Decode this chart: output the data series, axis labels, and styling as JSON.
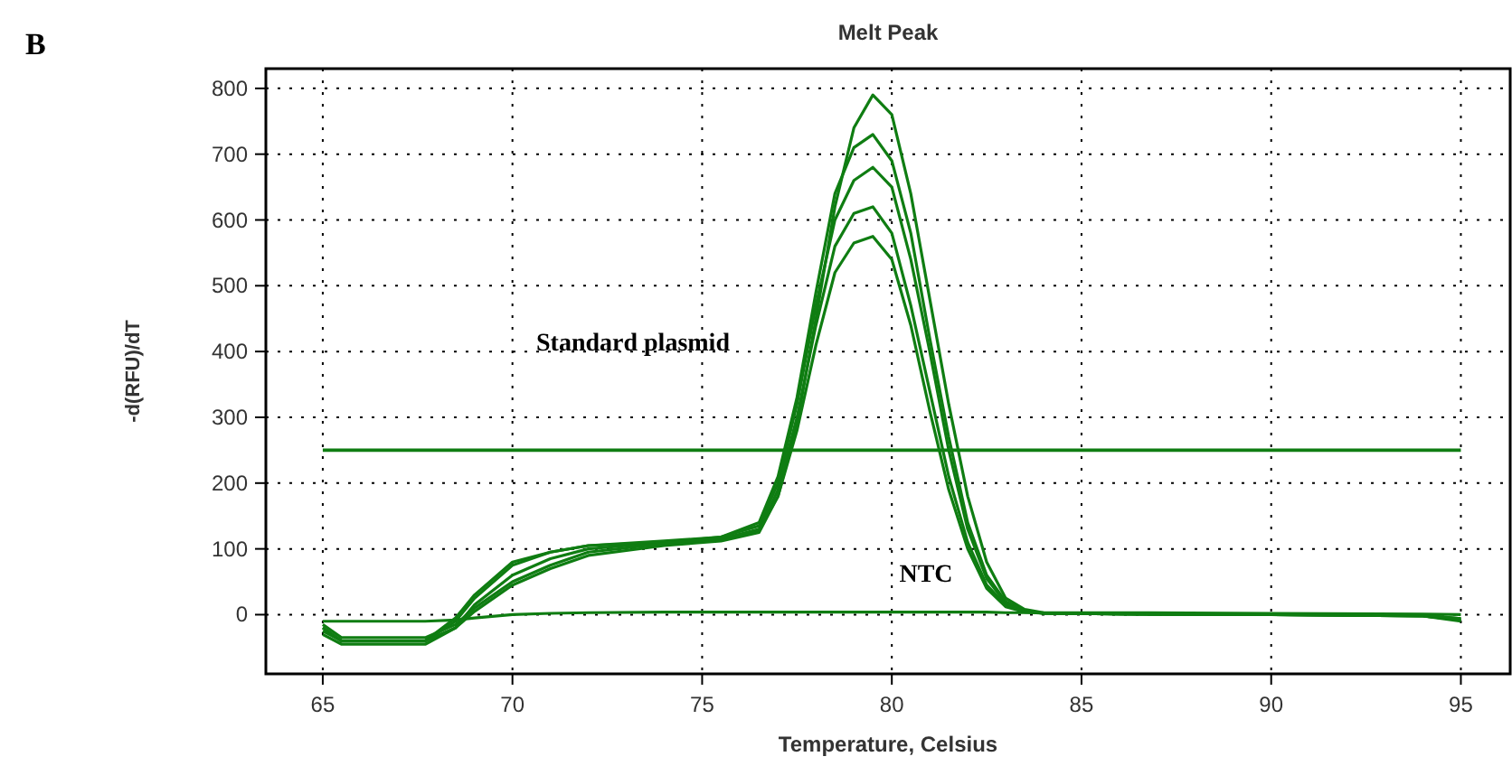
{
  "chart_data": {
    "type": "line",
    "title": "Melt Peak",
    "xlabel": "Temperature, Celsius",
    "ylabel": "-d(RFU)/dT",
    "x": [
      65,
      65.5,
      66,
      67,
      67.7,
      68.5,
      69,
      70,
      71,
      72,
      74,
      75.5,
      76.5,
      77,
      77.5,
      78,
      78.5,
      79,
      79.5,
      80,
      80.5,
      81,
      81.5,
      82,
      82.5,
      83,
      83.5,
      84,
      86,
      90,
      94,
      95
    ],
    "series": [
      {
        "color": "#0f7d12",
        "values": [
          -20,
          -40,
          -40,
          -40,
          -40,
          -5,
          30,
          80,
          95,
          105,
          110,
          115,
          130,
          180,
          290,
          450,
          620,
          740,
          790,
          760,
          640,
          480,
          320,
          180,
          80,
          25,
          8,
          3,
          1,
          0,
          -2,
          -10
        ]
      },
      {
        "color": "#0f7d12",
        "values": [
          -30,
          -45,
          -45,
          -45,
          -45,
          -20,
          15,
          60,
          85,
          100,
          110,
          118,
          140,
          210,
          330,
          490,
          640,
          710,
          730,
          690,
          580,
          420,
          270,
          140,
          60,
          20,
          6,
          2,
          1,
          0,
          -2,
          -8
        ]
      },
      {
        "color": "#0f7d12",
        "values": [
          -25,
          -40,
          -40,
          -40,
          -40,
          -10,
          25,
          75,
          95,
          105,
          112,
          118,
          135,
          200,
          320,
          470,
          600,
          660,
          680,
          650,
          540,
          400,
          250,
          130,
          55,
          18,
          6,
          2,
          1,
          0,
          -2,
          -8
        ]
      },
      {
        "color": "#0f7d12",
        "values": [
          -15,
          -35,
          -35,
          -35,
          -35,
          -15,
          10,
          50,
          75,
          95,
          108,
          115,
          128,
          190,
          300,
          440,
          560,
          610,
          620,
          580,
          470,
          340,
          210,
          110,
          45,
          15,
          5,
          2,
          1,
          0,
          -1,
          -6
        ]
      },
      {
        "color": "#0f7d12",
        "values": [
          -20,
          -40,
          -40,
          -40,
          -40,
          -20,
          5,
          45,
          70,
          90,
          105,
          112,
          125,
          180,
          280,
          410,
          520,
          565,
          575,
          540,
          440,
          310,
          190,
          100,
          40,
          12,
          4,
          2,
          1,
          0,
          -1,
          -6
        ]
      },
      {
        "color": "#0f7d12",
        "values": [
          -10,
          -10,
          -10,
          -10,
          -10,
          -8,
          -5,
          0,
          2,
          3,
          4,
          4,
          4,
          4,
          4,
          4,
          4,
          4,
          4,
          4,
          4,
          4,
          4,
          4,
          4,
          3,
          3,
          3,
          3,
          2,
          1,
          0
        ]
      }
    ],
    "xlim": [
      63.5,
      96.3
    ],
    "ylim": [
      -90,
      830
    ],
    "xticks": [
      65,
      70,
      75,
      80,
      85,
      90,
      95
    ],
    "yticks": [
      0,
      100,
      200,
      300,
      400,
      500,
      600,
      700,
      800
    ],
    "grid": true,
    "marker": "none",
    "line_style": "solid",
    "ref_lines": [
      {
        "axis": "y",
        "value": 250,
        "color": "#0f7d12"
      }
    ],
    "annotations": [
      "B",
      "Standard plasmid",
      "NTC"
    ]
  }
}
